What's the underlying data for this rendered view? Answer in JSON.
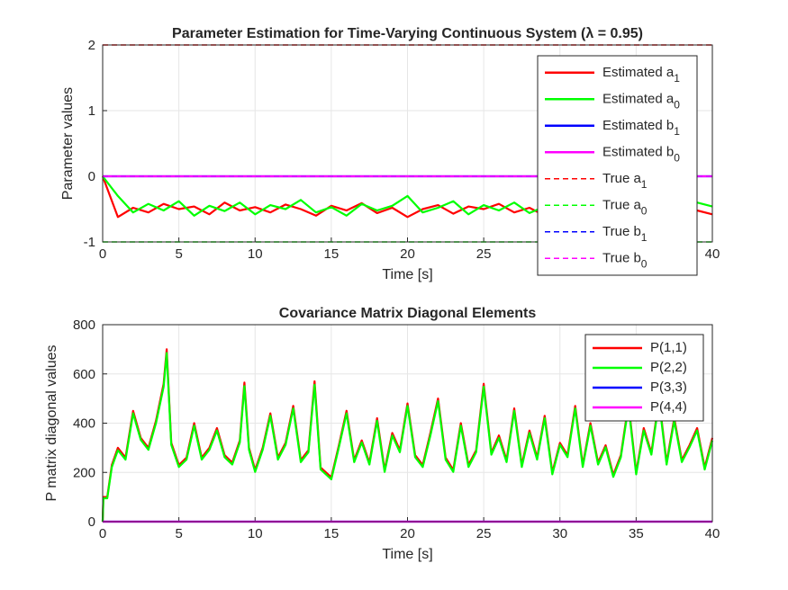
{
  "chart_data": [
    {
      "type": "line",
      "title": "Parameter Estimation for Time-Varying Continuous System (λ = 0.95)",
      "xlabel": "Time [s]",
      "ylabel": "Parameter values",
      "xlim": [
        0,
        40
      ],
      "ylim": [
        -1,
        2
      ],
      "xticks": [
        "0",
        "5",
        "10",
        "15",
        "20",
        "25",
        "30",
        "35",
        "40"
      ],
      "yticks": [
        "-1",
        "0",
        "1",
        "2"
      ],
      "grid": true,
      "legend_position": "top-right",
      "legend": [
        {
          "label": "Estimated a",
          "sub": "1",
          "color": "#ff0000",
          "dash": "solid"
        },
        {
          "label": "Estimated a",
          "sub": "0",
          "color": "#00ff00",
          "dash": "solid"
        },
        {
          "label": "Estimated b",
          "sub": "1",
          "color": "#0000ff",
          "dash": "solid"
        },
        {
          "label": "Estimated b",
          "sub": "0",
          "color": "#ff00ff",
          "dash": "solid"
        },
        {
          "label": "True a",
          "sub": "1",
          "color": "#ff0000",
          "dash": "dashed"
        },
        {
          "label": "True a",
          "sub": "0",
          "color": "#00ff00",
          "dash": "dashed"
        },
        {
          "label": "True b",
          "sub": "1",
          "color": "#0000ff",
          "dash": "dashed"
        },
        {
          "label": "True b",
          "sub": "0",
          "color": "#ff00ff",
          "dash": "dashed"
        }
      ],
      "series": [
        {
          "color": "#ff0000",
          "dash": "solid",
          "width": 2.2,
          "x": [
            0,
            1,
            2,
            3,
            4,
            5,
            6,
            7,
            8,
            9,
            10,
            11,
            12,
            13,
            14,
            15,
            16,
            17,
            18,
            19,
            20,
            21,
            22,
            23,
            24,
            25,
            26,
            27,
            28,
            29,
            30,
            31,
            32,
            33,
            34,
            35,
            36,
            37,
            38,
            39,
            40
          ],
          "y": [
            0,
            -0.62,
            -0.48,
            -0.55,
            -0.42,
            -0.5,
            -0.46,
            -0.58,
            -0.4,
            -0.52,
            -0.47,
            -0.55,
            -0.43,
            -0.5,
            -0.6,
            -0.45,
            -0.52,
            -0.41,
            -0.56,
            -0.48,
            -0.62,
            -0.5,
            -0.44,
            -0.57,
            -0.46,
            -0.5,
            -0.42,
            -0.55,
            -0.48,
            -0.6,
            -0.52,
            -0.45,
            -0.5,
            -0.56,
            -0.44,
            -0.5,
            -0.47,
            -0.53,
            -0.45,
            -0.52,
            -0.58
          ]
        },
        {
          "color": "#00ff00",
          "dash": "solid",
          "width": 2.2,
          "x": [
            0,
            1,
            2,
            3,
            4,
            5,
            6,
            7,
            8,
            9,
            10,
            11,
            12,
            13,
            14,
            15,
            16,
            17,
            18,
            19,
            20,
            21,
            22,
            23,
            24,
            25,
            26,
            27,
            28,
            29,
            30,
            31,
            32,
            33,
            34,
            35,
            36,
            37,
            38,
            39,
            40
          ],
          "y": [
            0,
            -0.3,
            -0.55,
            -0.42,
            -0.52,
            -0.38,
            -0.6,
            -0.45,
            -0.53,
            -0.4,
            -0.58,
            -0.44,
            -0.5,
            -0.36,
            -0.55,
            -0.47,
            -0.6,
            -0.42,
            -0.52,
            -0.45,
            -0.3,
            -0.55,
            -0.48,
            -0.38,
            -0.58,
            -0.44,
            -0.52,
            -0.4,
            -0.56,
            -0.46,
            -0.5,
            -0.38,
            -0.57,
            -0.45,
            -0.52,
            -0.42,
            -0.55,
            -0.47,
            -0.5,
            -0.4,
            -0.46
          ]
        },
        {
          "color": "#0000ff",
          "dash": "solid",
          "width": 2.2,
          "x": [
            0,
            40
          ],
          "y": [
            0,
            0
          ]
        },
        {
          "color": "#ff00ff",
          "dash": "solid",
          "width": 2.2,
          "x": [
            0,
            40
          ],
          "y": [
            0,
            0
          ]
        },
        {
          "color": "#ff0000",
          "dash": "dashed",
          "width": 1.4,
          "x": [
            0,
            40
          ],
          "y": [
            2,
            2
          ]
        },
        {
          "color": "#00ff00",
          "dash": "dashed",
          "width": 1.4,
          "x": [
            0,
            40
          ],
          "y": [
            -1,
            -1
          ]
        },
        {
          "color": "#0000ff",
          "dash": "dashed",
          "width": 1.4,
          "x": [
            0,
            40
          ],
          "y": [
            0,
            0
          ]
        },
        {
          "color": "#ff00ff",
          "dash": "dashed",
          "width": 1.4,
          "x": [
            0,
            40
          ],
          "y": [
            0,
            0
          ]
        }
      ]
    },
    {
      "type": "line",
      "title": "Covariance Matrix Diagonal Elements",
      "xlabel": "Time [s]",
      "ylabel": "P matrix diagonal values",
      "xlim": [
        0,
        40
      ],
      "ylim": [
        0,
        800
      ],
      "xticks": [
        "0",
        "5",
        "10",
        "15",
        "20",
        "25",
        "30",
        "35",
        "40"
      ],
      "yticks": [
        "0",
        "200",
        "400",
        "600",
        "800"
      ],
      "grid": true,
      "legend_position": "top-right",
      "legend": [
        {
          "label": "P(1,1)",
          "sub": "",
          "color": "#ff0000",
          "dash": "solid"
        },
        {
          "label": "P(2,2)",
          "sub": "",
          "color": "#00ff00",
          "dash": "solid"
        },
        {
          "label": "P(3,3)",
          "sub": "",
          "color": "#0000ff",
          "dash": "solid"
        },
        {
          "label": "P(4,4)",
          "sub": "",
          "color": "#ff00ff",
          "dash": "solid"
        }
      ],
      "series": [
        {
          "color": "#ff0000",
          "dash": "solid",
          "width": 2.2,
          "x": [
            0,
            0.05,
            0.3,
            0.6,
            1,
            1.5,
            2,
            2.5,
            3,
            3.5,
            4,
            4.2,
            4.5,
            5,
            5.5,
            6,
            6.5,
            7,
            7.5,
            8,
            8.5,
            9,
            9.3,
            9.6,
            10,
            10.5,
            11,
            11.5,
            12,
            12.5,
            13,
            13.5,
            13.9,
            14.3,
            15,
            15.5,
            16,
            16.5,
            17,
            17.5,
            18,
            18.5,
            19,
            19.5,
            20,
            20.5,
            21,
            21.5,
            22,
            22.5,
            23,
            23.5,
            24,
            24.5,
            25,
            25.5,
            26,
            26.5,
            27,
            27.5,
            28,
            28.5,
            29,
            29.5,
            30,
            30.5,
            31,
            31.5,
            32,
            32.5,
            33,
            33.5,
            34,
            34.5,
            35,
            35.5,
            36,
            36.5,
            37,
            37.5,
            38,
            38.5,
            39,
            39.5,
            40
          ],
          "y": [
            0,
            100,
            100,
            230,
            300,
            260,
            450,
            340,
            300,
            410,
            560,
            700,
            320,
            230,
            260,
            400,
            260,
            300,
            380,
            270,
            240,
            330,
            565,
            300,
            210,
            300,
            440,
            260,
            320,
            470,
            250,
            290,
            570,
            220,
            180,
            310,
            450,
            250,
            330,
            240,
            420,
            210,
            360,
            290,
            480,
            270,
            230,
            360,
            500,
            260,
            210,
            400,
            230,
            290,
            560,
            280,
            350,
            250,
            460,
            230,
            370,
            260,
            430,
            200,
            320,
            270,
            470,
            230,
            400,
            240,
            310,
            190,
            270,
            480,
            200,
            380,
            280,
            500,
            240,
            420,
            250,
            310,
            380,
            220,
            340
          ]
        },
        {
          "color": "#00ff00",
          "dash": "solid",
          "width": 2.2,
          "x": [
            0,
            0.05,
            0.3,
            0.6,
            1,
            1.5,
            2,
            2.5,
            3,
            3.5,
            4,
            4.2,
            4.5,
            5,
            5.5,
            6,
            6.5,
            7,
            7.5,
            8,
            8.5,
            9,
            9.3,
            9.6,
            10,
            10.5,
            11,
            11.5,
            12,
            12.5,
            13,
            13.5,
            13.9,
            14.3,
            15,
            15.5,
            16,
            16.5,
            17,
            17.5,
            18,
            18.5,
            19,
            19.5,
            20,
            20.5,
            21,
            21.5,
            22,
            22.5,
            23,
            23.5,
            24,
            24.5,
            25,
            25.5,
            26,
            26.5,
            27,
            27.5,
            28,
            28.5,
            29,
            29.5,
            30,
            30.5,
            31,
            31.5,
            32,
            32.5,
            33,
            33.5,
            34,
            34.5,
            35,
            35.5,
            36,
            36.5,
            37,
            37.5,
            38,
            38.5,
            39,
            39.5,
            40
          ],
          "y": [
            0,
            95,
            95,
            222,
            290,
            252,
            440,
            332,
            292,
            400,
            548,
            685,
            312,
            222,
            252,
            390,
            252,
            292,
            370,
            262,
            232,
            322,
            550,
            292,
            202,
            292,
            430,
            252,
            312,
            460,
            242,
            282,
            556,
            212,
            172,
            302,
            440,
            242,
            322,
            232,
            410,
            202,
            350,
            282,
            470,
            262,
            222,
            350,
            490,
            252,
            202,
            390,
            222,
            282,
            548,
            272,
            340,
            242,
            450,
            222,
            360,
            252,
            420,
            192,
            312,
            262,
            460,
            222,
            390,
            232,
            302,
            182,
            262,
            470,
            192,
            370,
            272,
            490,
            232,
            410,
            242,
            302,
            370,
            212,
            330
          ]
        },
        {
          "color": "#0000ff",
          "dash": "solid",
          "width": 2.2,
          "x": [
            0,
            40
          ],
          "y": [
            0,
            0
          ]
        },
        {
          "color": "#ff00ff",
          "dash": "solid",
          "width": 2.2,
          "x": [
            0,
            40
          ],
          "y": [
            0,
            0
          ]
        }
      ]
    }
  ]
}
